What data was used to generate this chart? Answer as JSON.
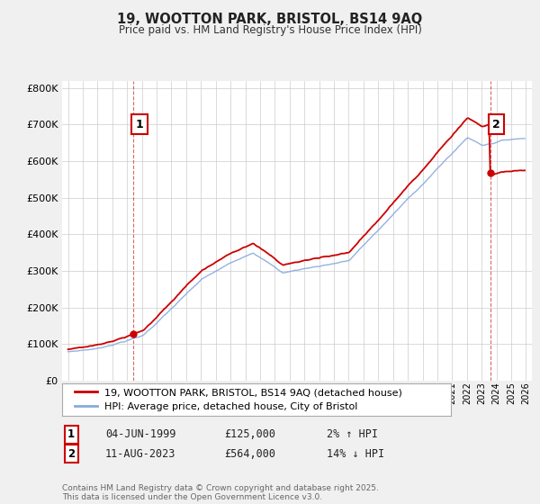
{
  "title": "19, WOOTTON PARK, BRISTOL, BS14 9AQ",
  "subtitle": "Price paid vs. HM Land Registry's House Price Index (HPI)",
  "legend_line1": "19, WOOTTON PARK, BRISTOL, BS14 9AQ (detached house)",
  "legend_line2": "HPI: Average price, detached house, City of Bristol",
  "annotation1_label": "1",
  "annotation1_date": "04-JUN-1999",
  "annotation1_price": "£125,000",
  "annotation1_hpi": "2% ↑ HPI",
  "annotation2_label": "2",
  "annotation2_date": "11-AUG-2023",
  "annotation2_price": "£564,000",
  "annotation2_hpi": "14% ↓ HPI",
  "footnote": "Contains HM Land Registry data © Crown copyright and database right 2025.\nThis data is licensed under the Open Government Licence v3.0.",
  "ylim": [
    0,
    820000
  ],
  "yticks": [
    0,
    100000,
    200000,
    300000,
    400000,
    500000,
    600000,
    700000,
    800000
  ],
  "color_price": "#cc0000",
  "color_hpi": "#88aadd",
  "background_color": "#f0f0f0",
  "plot_bg_color": "#ffffff",
  "grid_color": "#cccccc",
  "t1": 1999.42,
  "t2": 2023.58,
  "price1": 125000,
  "price2": 564000
}
